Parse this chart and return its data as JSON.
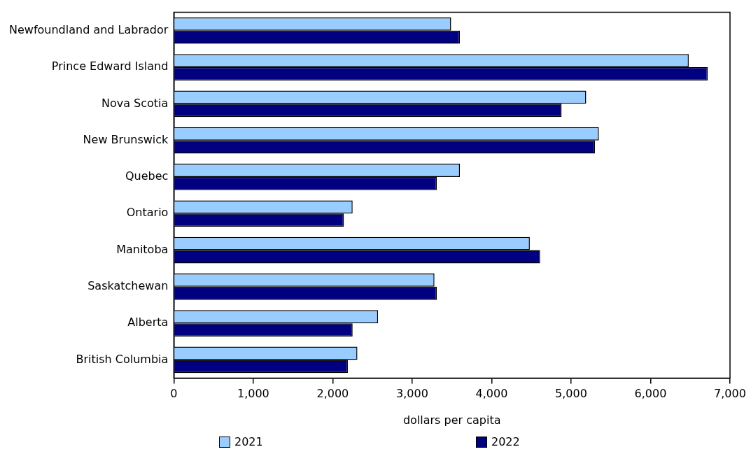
{
  "chart_data": {
    "type": "bar",
    "orientation": "horizontal",
    "xlabel": "dollars per capita",
    "categories": [
      "Newfoundland and Labrador",
      "Prince Edward Island",
      "Nova Scotia",
      "New Brunswick",
      "Quebec",
      "Ontario",
      "Manitoba",
      "Saskatchewan",
      "Alberta",
      "British Columbia"
    ],
    "series": [
      {
        "name": "2021",
        "color": "#99ccff",
        "values": [
          3490,
          6480,
          5190,
          5350,
          3600,
          2250,
          4480,
          3280,
          2570,
          2310
        ]
      },
      {
        "name": "2022",
        "color": "#000080",
        "values": [
          3600,
          6720,
          4880,
          5300,
          3310,
          2140,
          4610,
          3310,
          2250,
          2190
        ]
      }
    ],
    "xlim": [
      0,
      7000
    ],
    "xticks": [
      {
        "value": 0,
        "label": "0"
      },
      {
        "value": 1000,
        "label": "1,000"
      },
      {
        "value": 2000,
        "label": "2,000"
      },
      {
        "value": 3000,
        "label": "3,000"
      },
      {
        "value": 4000,
        "label": "4,000"
      },
      {
        "value": 5000,
        "label": "5,000"
      },
      {
        "value": 6000,
        "label": "6,000"
      },
      {
        "value": 7000,
        "label": "7,000"
      }
    ],
    "grid": false,
    "legend": "bottom"
  }
}
